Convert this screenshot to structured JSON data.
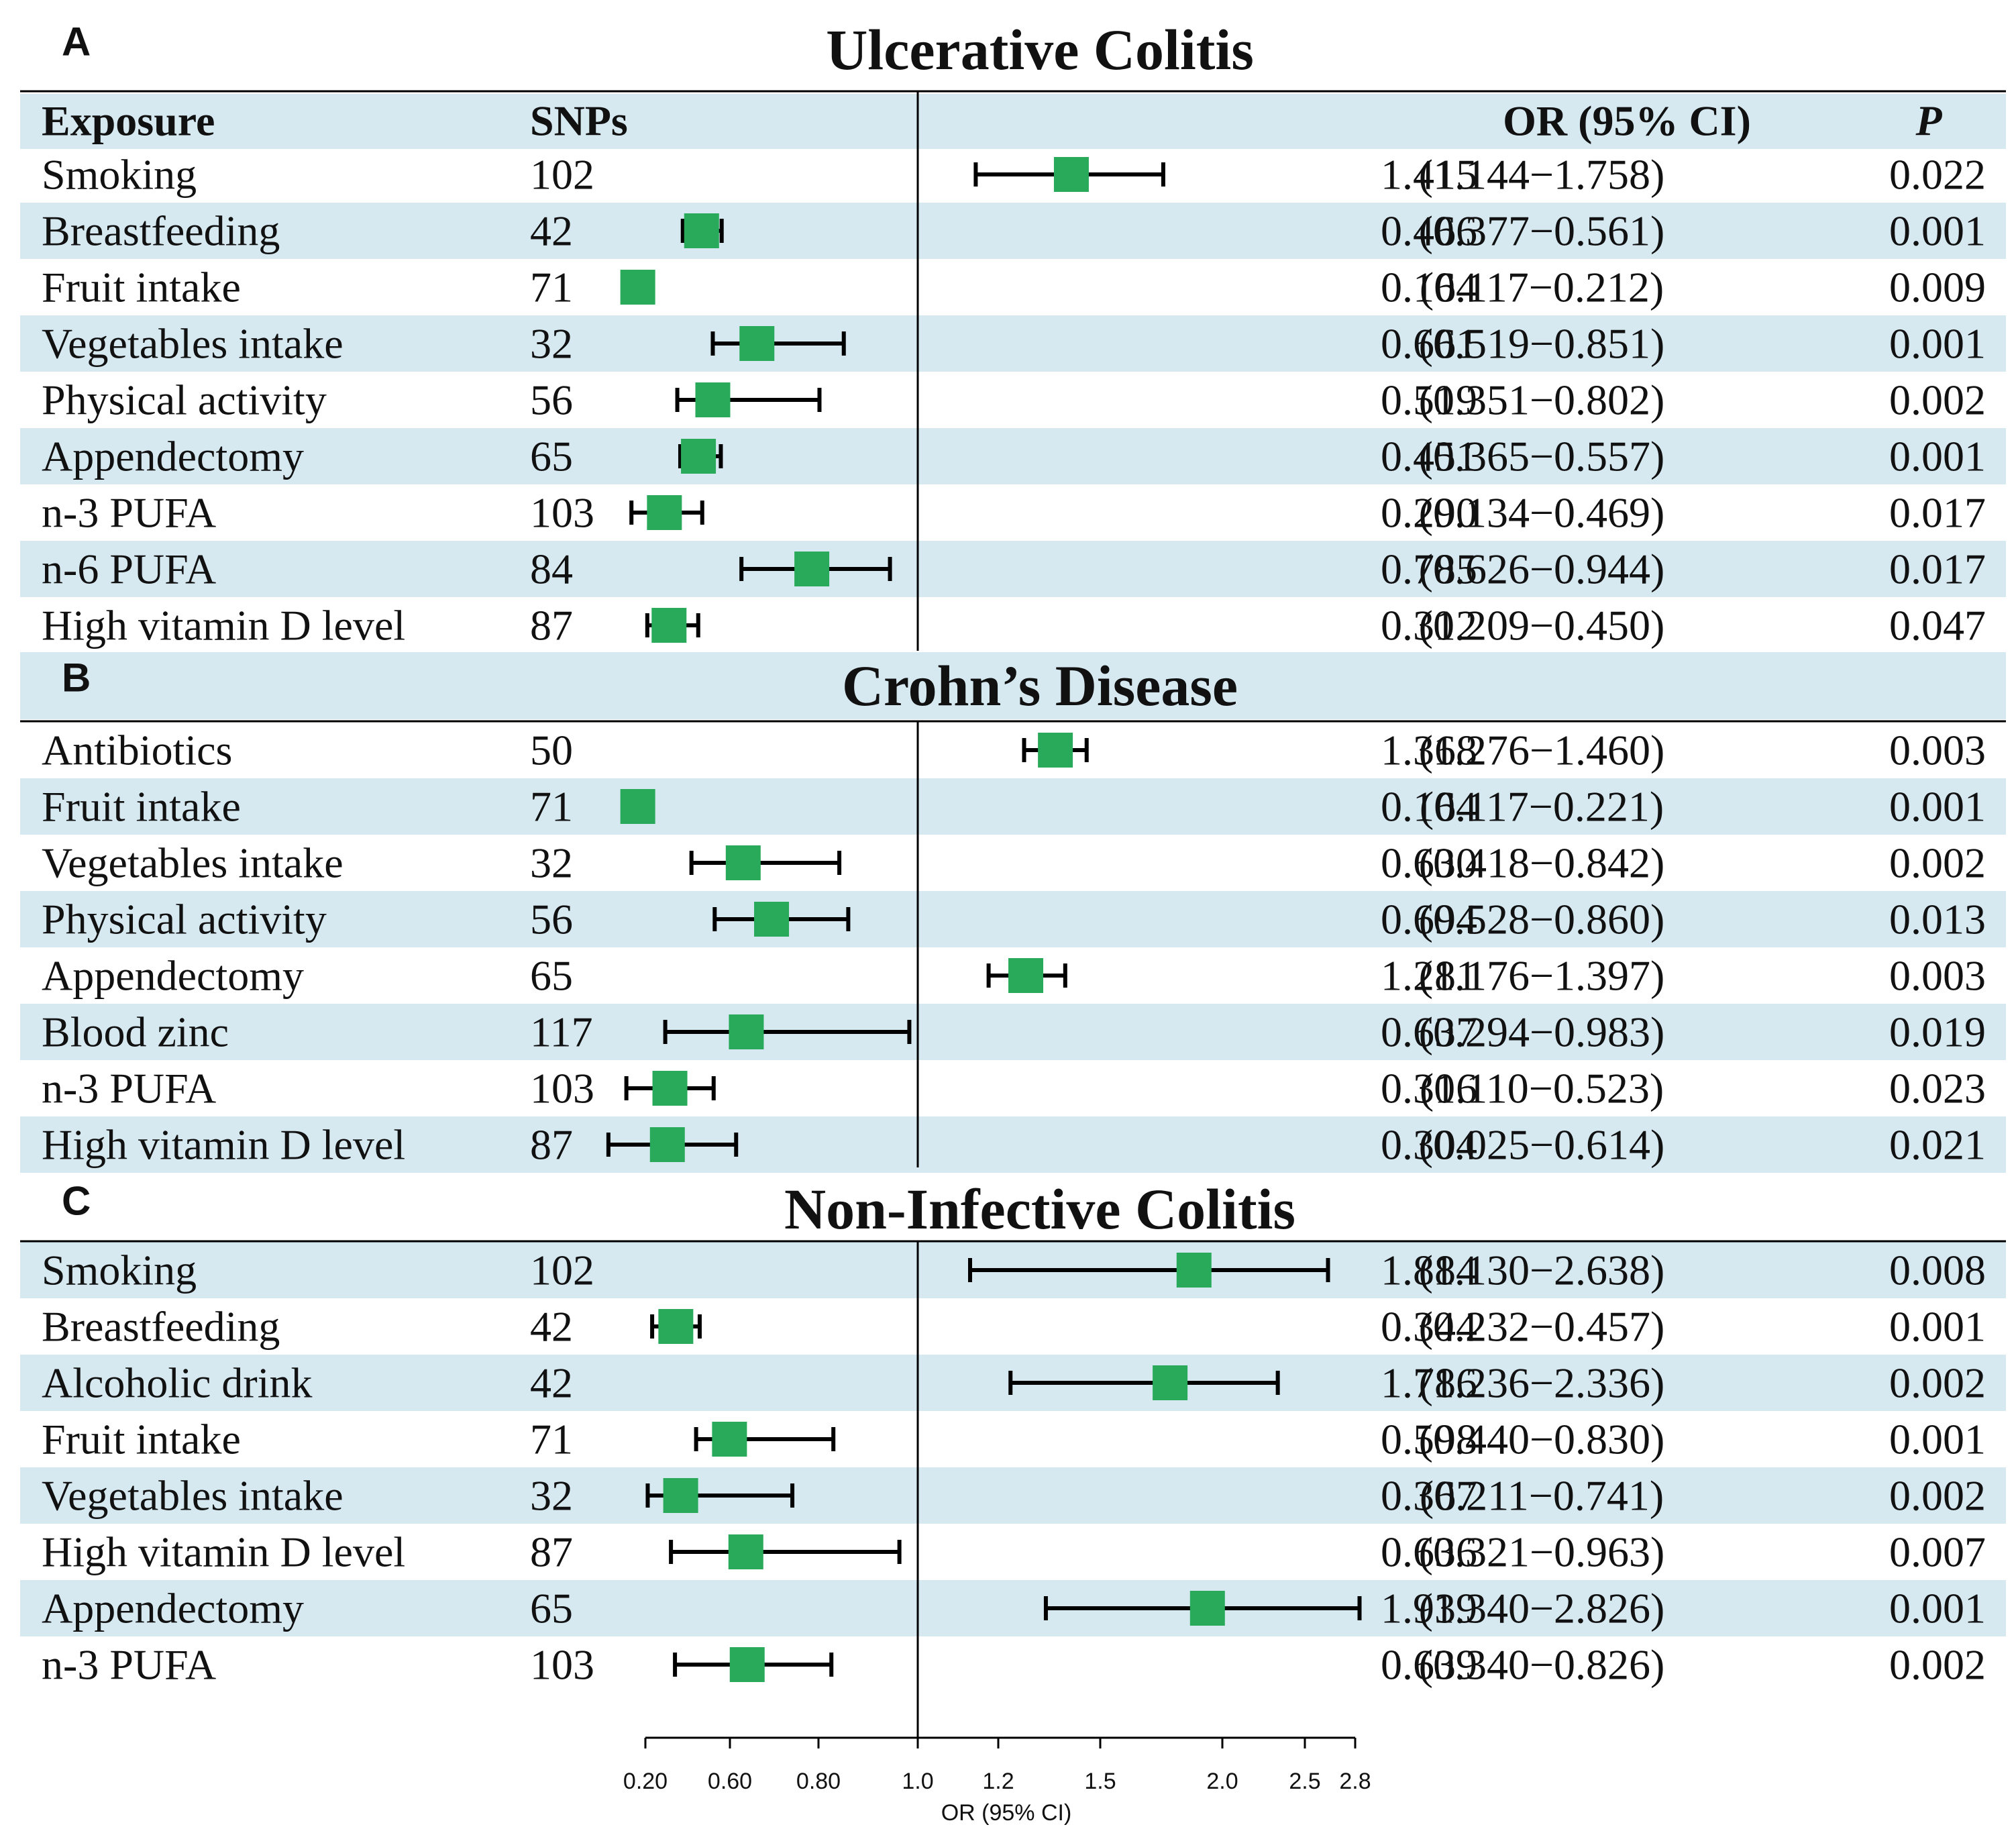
{
  "colors": {
    "band": "#d6e9f1",
    "marker": "#29aa5a",
    "line": "#000000",
    "text": "#111111"
  },
  "header": {
    "exposure": "Exposure",
    "snps": "SNPs",
    "or_ci": "OR (95% CI)",
    "p": "P"
  },
  "chart_data": {
    "type": "forest",
    "xlabel": "OR (95% CI)",
    "reference_line": 1.0,
    "xticks": [
      "0.20",
      "0.60",
      "0.80",
      "1.0",
      "1.2",
      "1.5",
      "2.0",
      "2.5",
      "2.8"
    ],
    "panels": [
      {
        "letter": "A",
        "title": "Ulcerative Colitis",
        "rows": [
          {
            "exposure": "Smoking",
            "snps": "102",
            "or": 1.415,
            "lo": 1.144,
            "hi": 1.758,
            "or_text": "1.415",
            "ci_text": "(1.144−1.758)",
            "p": "0.022"
          },
          {
            "exposure": "Breastfeeding",
            "snps": "42",
            "or": 0.466,
            "lo": 0.377,
            "hi": 0.561,
            "or_text": "0.466",
            "ci_text": "(0.377−0.561)",
            "p": "0.001"
          },
          {
            "exposure": "Fruit intake",
            "snps": "71",
            "or": 0.164,
            "lo": 0.117,
            "hi": 0.212,
            "or_text": "0.164",
            "ci_text": "(0.117−0.212)",
            "p": "0.009"
          },
          {
            "exposure": "Vegetables intake",
            "snps": "32",
            "or": 0.661,
            "lo": 0.519,
            "hi": 0.851,
            "or_text": "0.661",
            "ci_text": "(0.519−0.851)",
            "p": "0.001"
          },
          {
            "exposure": "Physical activity",
            "snps": "56",
            "or": 0.519,
            "lo": 0.351,
            "hi": 0.802,
            "or_text": "0.519",
            "ci_text": "(0.351−0.802)",
            "p": "0.002"
          },
          {
            "exposure": "Appendectomy",
            "snps": "65",
            "or": 0.451,
            "lo": 0.365,
            "hi": 0.557,
            "or_text": "0.451",
            "ci_text": "(0.365−0.557)",
            "p": "0.001"
          },
          {
            "exposure": "n-3 PUFA",
            "snps": "103",
            "or": 0.29,
            "lo": 0.134,
            "hi": 0.469,
            "or_text": "0.290",
            "ci_text": "(0.134−0.469)",
            "p": "0.017"
          },
          {
            "exposure": "n-6 PUFA",
            "snps": "84",
            "or": 0.785,
            "lo": 0.626,
            "hi": 0.944,
            "or_text": "0.785",
            "ci_text": "(0.626−0.944)",
            "p": "0.017"
          },
          {
            "exposure": "High vitamin D level",
            "snps": "87",
            "or": 0.312,
            "lo": 0.209,
            "hi": 0.45,
            "or_text": "0.312",
            "ci_text": "(0.209−0.450)",
            "p": "0.047"
          }
        ]
      },
      {
        "letter": "B",
        "title": "Crohn’s Disease",
        "rows": [
          {
            "exposure": "Antibiotics",
            "snps": "50",
            "or": 1.368,
            "lo": 1.276,
            "hi": 1.46,
            "or_text": "1.368",
            "ci_text": "(1.276−1.460)",
            "p": "0.003"
          },
          {
            "exposure": "Fruit intake",
            "snps": "71",
            "or": 0.164,
            "lo": 0.117,
            "hi": 0.221,
            "or_text": "0.164",
            "ci_text": "(0.117−0.221)",
            "p": "0.001"
          },
          {
            "exposure": "Vegetables intake",
            "snps": "32",
            "or": 0.63,
            "lo": 0.418,
            "hi": 0.842,
            "or_text": "0.630",
            "ci_text": "(0.418−0.842)",
            "p": "0.002"
          },
          {
            "exposure": "Physical activity",
            "snps": "56",
            "or": 0.694,
            "lo": 0.528,
            "hi": 0.86,
            "or_text": "0.694",
            "ci_text": "(0.528−0.860)",
            "p": "0.013"
          },
          {
            "exposure": "Appendectomy",
            "snps": "65",
            "or": 1.281,
            "lo": 1.176,
            "hi": 1.397,
            "or_text": "1.281",
            "ci_text": "(1.176−1.397)",
            "p": "0.003"
          },
          {
            "exposure": "Blood zinc",
            "snps": "117",
            "or": 0.637,
            "lo": 0.294,
            "hi": 0.983,
            "or_text": "0.637",
            "ci_text": "(0.294−0.983)",
            "p": "0.019"
          },
          {
            "exposure": "n-3 PUFA",
            "snps": "103",
            "or": 0.316,
            "lo": 0.11,
            "hi": 0.523,
            "or_text": "0.316",
            "ci_text": "(0.110−0.523)",
            "p": "0.023"
          },
          {
            "exposure": "High vitamin D level",
            "snps": "87",
            "or": 0.304,
            "lo": 0.025,
            "hi": 0.614,
            "or_text": "0.304",
            "ci_text": "(0.025−0.614)",
            "p": "0.021"
          }
        ]
      },
      {
        "letter": "C",
        "title": "Non-Infective Colitis",
        "rows": [
          {
            "exposure": "Smoking",
            "snps": "102",
            "or": 1.884,
            "lo": 1.13,
            "hi": 2.638,
            "or_text": "1.884",
            "ci_text": "(1.130−2.638)",
            "p": "0.008"
          },
          {
            "exposure": "Breastfeeding",
            "snps": "42",
            "or": 0.344,
            "lo": 0.232,
            "hi": 0.457,
            "or_text": "0.344",
            "ci_text": "(0.232−0.457)",
            "p": "0.001"
          },
          {
            "exposure": "Alcoholic drink",
            "snps": "42",
            "or": 1.786,
            "lo": 1.236,
            "hi": 2.336,
            "or_text": "1.786",
            "ci_text": "(1.236−2.336)",
            "p": "0.002"
          },
          {
            "exposure": "Fruit intake",
            "snps": "71",
            "or": 0.598,
            "lo": 0.44,
            "hi": 0.83,
            "or_text": "0.598",
            "ci_text": "(0.440−0.830)",
            "p": "0.001"
          },
          {
            "exposure": "Vegetables intake",
            "snps": "32",
            "or": 0.367,
            "lo": 0.211,
            "hi": 0.741,
            "or_text": "0.367",
            "ci_text": "(0.211−0.741)",
            "p": "0.002"
          },
          {
            "exposure": "High vitamin D level",
            "snps": "87",
            "or": 0.636,
            "lo": 0.321,
            "hi": 0.963,
            "or_text": "0.636",
            "ci_text": "(0.321−0.963)",
            "p": "0.007"
          },
          {
            "exposure": "Appendectomy",
            "snps": "65",
            "or": 1.939,
            "lo": 1.34,
            "hi": 2.826,
            "or_text": "1.939",
            "ci_text": "(1.340−2.826)",
            "p": "0.001"
          },
          {
            "exposure": "n-3 PUFA",
            "snps": "103",
            "or": 0.639,
            "lo": 0.34,
            "hi": 0.826,
            "or_text": "0.639",
            "ci_text": "(0.340−0.826)",
            "p": "0.002"
          }
        ]
      }
    ]
  }
}
